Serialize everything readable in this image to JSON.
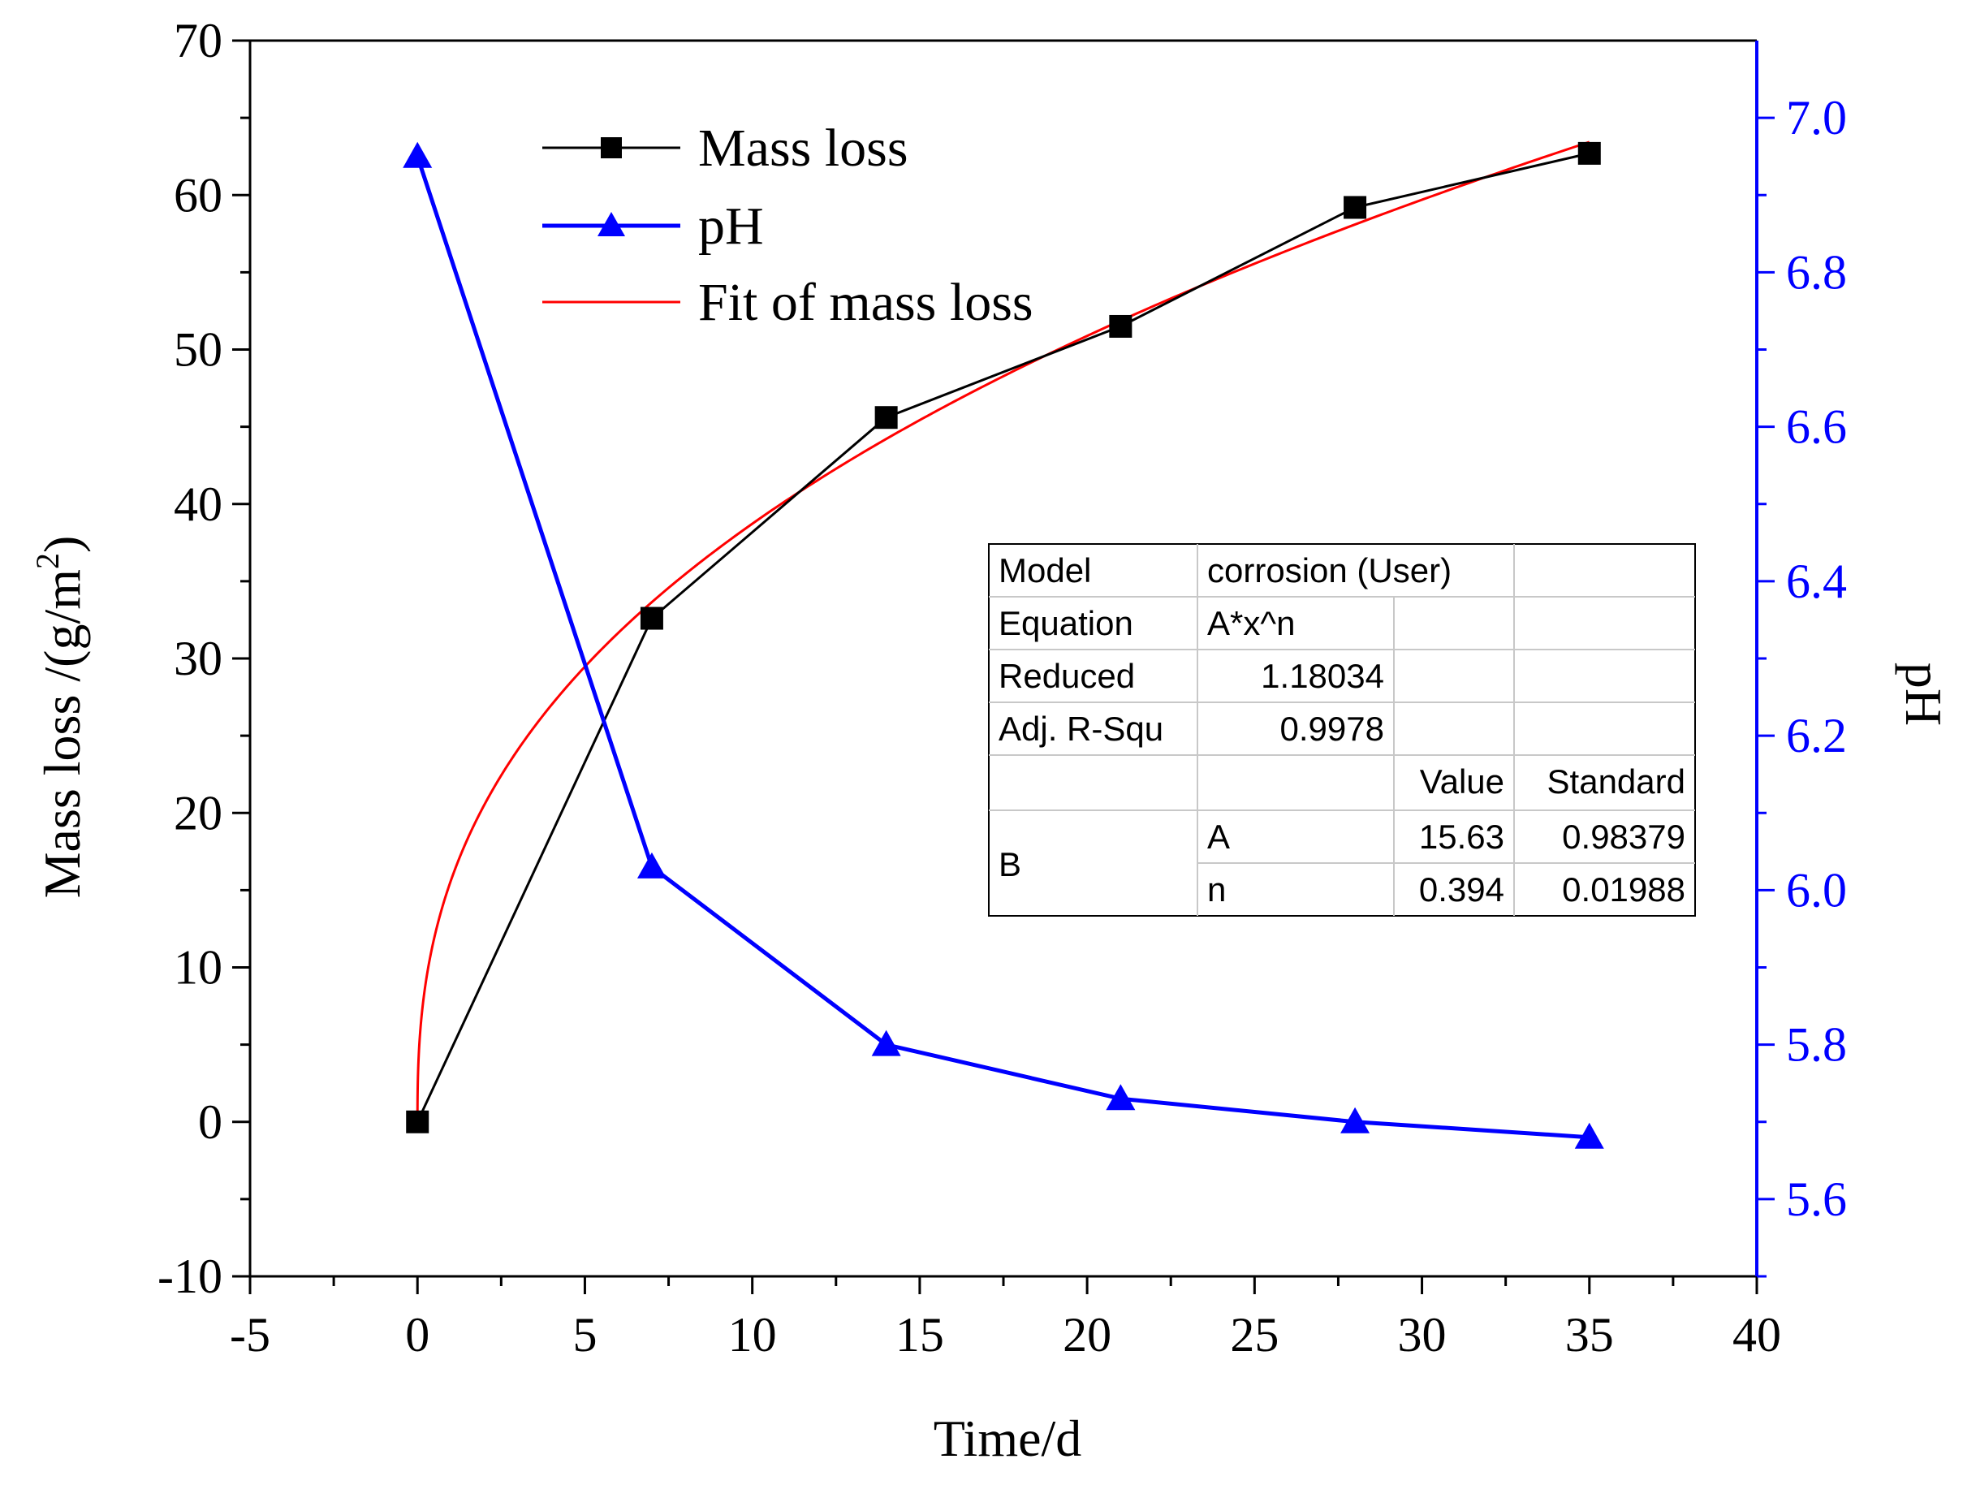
{
  "chart_data": {
    "type": "line",
    "xlabel": "Time/d",
    "ylabel_left": "Mass loss /(g/m",
    "ylabel_left_sup": "2",
    "ylabel_left_end": ")",
    "ylabel_right": "pH",
    "xlim": [
      -5,
      40
    ],
    "ylim_left": [
      -10,
      70
    ],
    "ylim_right": [
      5.5,
      7.1
    ],
    "x_ticks": [
      -5,
      0,
      5,
      10,
      15,
      20,
      25,
      30,
      35,
      40
    ],
    "x_tick_labels": [
      "-5",
      "0",
      "5",
      "10",
      "15",
      "20",
      "25",
      "30",
      "35",
      "40"
    ],
    "y_left_ticks": [
      -10,
      0,
      10,
      20,
      30,
      40,
      50,
      60,
      70
    ],
    "y_left_tick_labels": [
      "-10",
      "0",
      "10",
      "20",
      "30",
      "40",
      "50",
      "60",
      "70"
    ],
    "y_right_ticks": [
      5.6,
      5.8,
      6.0,
      6.2,
      6.4,
      6.6,
      6.8,
      7.0
    ],
    "y_right_tick_labels": [
      "5.6",
      "5.8",
      "6.0",
      "6.2",
      "6.4",
      "6.6",
      "6.8",
      "7.0"
    ],
    "series": [
      {
        "name": "Mass loss",
        "axis": "left",
        "marker": "square",
        "color": "#000000",
        "x": [
          0,
          7,
          14,
          21,
          28,
          35
        ],
        "values": [
          0,
          32.6,
          45.6,
          51.5,
          59.2,
          62.7
        ]
      },
      {
        "name": "pH",
        "axis": "right",
        "marker": "triangle",
        "color": "#0000ff",
        "x": [
          0,
          7,
          14,
          21,
          28,
          35
        ],
        "values": [
          6.95,
          6.03,
          5.8,
          5.73,
          5.7,
          5.68
        ]
      },
      {
        "name": "Fit of mass loss",
        "axis": "left",
        "marker": "none",
        "color": "#ff0000",
        "model": "A*x^n",
        "A": 15.63,
        "n": 0.394,
        "x_range": [
          0,
          35
        ]
      }
    ],
    "legend": {
      "position": "top-left",
      "entries": [
        "Mass loss",
        "pH",
        "Fit of mass loss"
      ]
    },
    "fit_table": {
      "rows": [
        [
          "Model",
          "corrosion (User)",
          "",
          ""
        ],
        [
          "Equation",
          "A*x^n",
          "",
          ""
        ],
        [
          "Reduced",
          "1.18034",
          "",
          ""
        ],
        [
          "Adj. R-Squ",
          "0.9978",
          "",
          ""
        ],
        [
          "",
          "",
          "Value",
          "Standard"
        ],
        [
          "B",
          "A",
          "15.63",
          "0.98379"
        ],
        [
          "",
          "n",
          "0.394",
          "0.01988"
        ]
      ]
    }
  }
}
